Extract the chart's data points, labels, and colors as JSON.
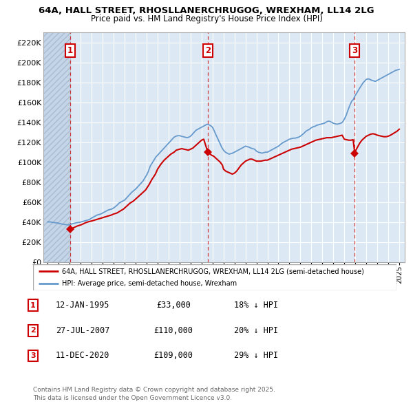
{
  "title_line1": "64A, HALL STREET, RHOSLLANERCHRUGOG, WREXHAM, LL14 2LG",
  "title_line2": "Price paid vs. HM Land Registry's House Price Index (HPI)",
  "ylim": [
    0,
    230000
  ],
  "yticks": [
    0,
    20000,
    40000,
    60000,
    80000,
    100000,
    120000,
    140000,
    160000,
    180000,
    200000,
    220000
  ],
  "ytick_labels": [
    "£0",
    "£20K",
    "£40K",
    "£60K",
    "£80K",
    "£100K",
    "£120K",
    "£140K",
    "£160K",
    "£180K",
    "£200K",
    "£220K"
  ],
  "xlim_start": 1992.6,
  "xlim_end": 2025.5,
  "bg_color": "#dce9f5",
  "grid_color": "#ffffff",
  "sale_dates_num": [
    1995.04,
    2007.57,
    2020.95
  ],
  "sale_prices": [
    33000,
    110000,
    109000
  ],
  "sale_labels": [
    "1",
    "2",
    "3"
  ],
  "sale_date_str": [
    "12-JAN-1995",
    "27-JUL-2007",
    "11-DEC-2020"
  ],
  "sale_price_str": [
    "£33,000",
    "£110,000",
    "£109,000"
  ],
  "sale_hpi_pct": [
    "18% ↓ HPI",
    "20% ↓ HPI",
    "29% ↓ HPI"
  ],
  "legend_line1": "64A, HALL STREET, RHOSLLANERCHRUGOG, WREXHAM, LL14 2LG (semi-detached house)",
  "legend_line2": "HPI: Average price, semi-detached house, Wrexham",
  "footer": "Contains HM Land Registry data © Crown copyright and database right 2025.\nThis data is licensed under the Open Government Licence v3.0.",
  "red_color": "#cc0000",
  "blue_color": "#6699cc",
  "hpi_x": [
    1993.0,
    1993.08,
    1993.17,
    1993.25,
    1993.33,
    1993.42,
    1993.5,
    1993.58,
    1993.67,
    1993.75,
    1993.83,
    1993.92,
    1994.0,
    1994.08,
    1994.17,
    1994.25,
    1994.33,
    1994.42,
    1994.5,
    1994.58,
    1994.67,
    1994.75,
    1994.83,
    1994.92,
    1995.0,
    1995.08,
    1995.17,
    1995.25,
    1995.33,
    1995.42,
    1995.5,
    1995.58,
    1995.67,
    1995.75,
    1995.83,
    1995.92,
    1996.0,
    1996.17,
    1996.33,
    1996.5,
    1996.67,
    1996.83,
    1997.0,
    1997.17,
    1997.33,
    1997.5,
    1997.67,
    1997.83,
    1998.0,
    1998.17,
    1998.33,
    1998.5,
    1998.67,
    1998.83,
    1999.0,
    1999.17,
    1999.33,
    1999.5,
    1999.67,
    1999.83,
    2000.0,
    2000.17,
    2000.33,
    2000.5,
    2000.67,
    2000.83,
    2001.0,
    2001.17,
    2001.33,
    2001.5,
    2001.67,
    2001.83,
    2002.0,
    2002.17,
    2002.33,
    2002.5,
    2002.67,
    2002.83,
    2003.0,
    2003.17,
    2003.33,
    2003.5,
    2003.67,
    2003.83,
    2004.0,
    2004.17,
    2004.33,
    2004.5,
    2004.67,
    2004.83,
    2005.0,
    2005.17,
    2005.33,
    2005.5,
    2005.67,
    2005.83,
    2006.0,
    2006.17,
    2006.33,
    2006.5,
    2006.67,
    2006.83,
    2007.0,
    2007.17,
    2007.33,
    2007.5,
    2007.67,
    2007.83,
    2008.0,
    2008.17,
    2008.33,
    2008.5,
    2008.67,
    2008.83,
    2009.0,
    2009.17,
    2009.33,
    2009.5,
    2009.67,
    2009.83,
    2010.0,
    2010.17,
    2010.33,
    2010.5,
    2010.67,
    2010.83,
    2011.0,
    2011.17,
    2011.33,
    2011.5,
    2011.67,
    2011.83,
    2012.0,
    2012.17,
    2012.33,
    2012.5,
    2012.67,
    2012.83,
    2013.0,
    2013.17,
    2013.33,
    2013.5,
    2013.67,
    2013.83,
    2014.0,
    2014.17,
    2014.33,
    2014.5,
    2014.67,
    2014.83,
    2015.0,
    2015.17,
    2015.33,
    2015.5,
    2015.67,
    2015.83,
    2016.0,
    2016.17,
    2016.33,
    2016.5,
    2016.67,
    2016.83,
    2017.0,
    2017.17,
    2017.33,
    2017.5,
    2017.67,
    2017.83,
    2018.0,
    2018.17,
    2018.33,
    2018.5,
    2018.67,
    2018.83,
    2019.0,
    2019.17,
    2019.33,
    2019.5,
    2019.67,
    2019.83,
    2020.0,
    2020.17,
    2020.33,
    2020.5,
    2020.67,
    2020.83,
    2021.0,
    2021.17,
    2021.33,
    2021.5,
    2021.67,
    2021.83,
    2022.0,
    2022.17,
    2022.33,
    2022.5,
    2022.67,
    2022.83,
    2023.0,
    2023.17,
    2023.33,
    2023.5,
    2023.67,
    2023.83,
    2024.0,
    2024.17,
    2024.33,
    2024.5,
    2024.67,
    2024.83,
    2025.0
  ],
  "hpi_y": [
    40000,
    40200,
    40100,
    40000,
    39800,
    39600,
    39500,
    39400,
    39300,
    39200,
    39100,
    39000,
    38500,
    38400,
    38200,
    38000,
    37800,
    37600,
    37500,
    37400,
    37300,
    37200,
    37100,
    37000,
    37200,
    37500,
    38000,
    38300,
    38500,
    38700,
    39000,
    39200,
    39400,
    39500,
    39600,
    39700,
    40000,
    40500,
    41000,
    41500,
    42000,
    42800,
    44000,
    45000,
    46000,
    47000,
    47500,
    48000,
    49000,
    50000,
    51000,
    52000,
    52500,
    53000,
    54000,
    55500,
    57000,
    59000,
    60000,
    61000,
    62000,
    64000,
    66000,
    68000,
    70000,
    71500,
    73000,
    75000,
    77000,
    79000,
    81000,
    84000,
    87000,
    91000,
    96000,
    99000,
    102000,
    105000,
    107000,
    109000,
    111000,
    113000,
    115000,
    117000,
    119000,
    121000,
    123000,
    125000,
    126000,
    126500,
    126500,
    126000,
    125500,
    125000,
    124500,
    125000,
    126000,
    128000,
    130000,
    132000,
    133000,
    134000,
    135000,
    136000,
    137000,
    138000,
    137500,
    136500,
    135000,
    131000,
    127000,
    123000,
    119000,
    115000,
    112000,
    110000,
    109000,
    108000,
    108500,
    109000,
    110000,
    111000,
    112000,
    113000,
    114000,
    115000,
    116000,
    115500,
    115000,
    114000,
    113500,
    113000,
    111000,
    110000,
    109500,
    109000,
    109500,
    110000,
    110000,
    111000,
    112000,
    113000,
    114000,
    115000,
    116000,
    117500,
    119000,
    120000,
    121000,
    122000,
    123000,
    123500,
    124000,
    124000,
    124500,
    125000,
    126000,
    127500,
    129000,
    131000,
    132000,
    133000,
    134500,
    135500,
    136000,
    137000,
    137500,
    138000,
    138500,
    139000,
    140000,
    141000,
    141000,
    140000,
    139000,
    138500,
    138000,
    138500,
    139000,
    140000,
    143000,
    147000,
    152000,
    157000,
    161000,
    163000,
    167000,
    170000,
    173000,
    176000,
    179000,
    181000,
    183000,
    183500,
    183000,
    182000,
    181500,
    181000,
    182000,
    183000,
    184000,
    185000,
    186000,
    187000,
    188000,
    189000,
    190000,
    191000,
    192000,
    192500,
    193000
  ],
  "red_x": [
    1995.04,
    1995.1,
    1995.2,
    1995.3,
    1995.5,
    1995.7,
    1996.0,
    1996.2,
    1996.5,
    1996.8,
    1997.0,
    1997.3,
    1997.6,
    1997.9,
    1998.2,
    1998.5,
    1998.8,
    1999.0,
    1999.3,
    1999.6,
    1999.9,
    2000.2,
    2000.5,
    2000.8,
    2001.0,
    2001.3,
    2001.6,
    2001.9,
    2002.2,
    2002.5,
    2002.8,
    2003.0,
    2003.3,
    2003.6,
    2003.9,
    2004.2,
    2004.5,
    2004.7,
    2005.0,
    2005.2,
    2005.4,
    2005.6,
    2005.8,
    2006.0,
    2006.2,
    2006.4,
    2006.6,
    2006.8,
    2007.0,
    2007.2,
    2007.57,
    2007.7,
    2007.9,
    2008.1,
    2008.3,
    2008.5,
    2008.7,
    2008.9,
    2009.0,
    2009.2,
    2009.4,
    2009.6,
    2009.8,
    2010.0,
    2010.2,
    2010.4,
    2010.6,
    2010.8,
    2011.0,
    2011.2,
    2011.4,
    2011.6,
    2011.8,
    2012.0,
    2012.2,
    2012.4,
    2012.6,
    2012.8,
    2013.0,
    2013.2,
    2013.4,
    2013.6,
    2013.8,
    2014.0,
    2014.2,
    2014.4,
    2014.6,
    2014.8,
    2015.0,
    2015.2,
    2015.4,
    2015.6,
    2015.8,
    2016.0,
    2016.2,
    2016.4,
    2016.6,
    2016.8,
    2017.0,
    2017.2,
    2017.4,
    2017.6,
    2017.8,
    2018.0,
    2018.2,
    2018.4,
    2018.6,
    2018.8,
    2019.0,
    2019.2,
    2019.4,
    2019.6,
    2019.8,
    2020.0,
    2020.2,
    2020.4,
    2020.6,
    2020.8,
    2020.95,
    2021.0,
    2021.2,
    2021.4,
    2021.6,
    2021.8,
    2022.0,
    2022.2,
    2022.4,
    2022.6,
    2022.8,
    2023.0,
    2023.2,
    2023.4,
    2023.6,
    2023.8,
    2024.0,
    2024.2,
    2024.5,
    2024.8,
    2025.0
  ],
  "red_y": [
    33000,
    33200,
    33500,
    34000,
    35000,
    36000,
    37000,
    38000,
    39500,
    40500,
    41000,
    42000,
    43000,
    44000,
    45000,
    46000,
    47000,
    48000,
    49000,
    51000,
    53000,
    56000,
    59000,
    61000,
    63000,
    66000,
    69000,
    72000,
    77000,
    83000,
    88000,
    93000,
    98000,
    102000,
    105000,
    108000,
    110000,
    112000,
    113000,
    113500,
    113000,
    112500,
    112000,
    113000,
    114000,
    116000,
    118000,
    120000,
    122000,
    123000,
    110000,
    109000,
    107000,
    106000,
    104000,
    102000,
    100000,
    97000,
    93000,
    91000,
    90000,
    89000,
    88000,
    89000,
    91000,
    94000,
    97000,
    99000,
    101000,
    102000,
    103000,
    103000,
    102000,
    101000,
    101000,
    101000,
    101500,
    102000,
    102000,
    103000,
    104000,
    105000,
    106000,
    107000,
    108000,
    109000,
    110000,
    111000,
    112000,
    113000,
    113500,
    114000,
    114500,
    115000,
    116000,
    117000,
    118000,
    119000,
    120000,
    121000,
    122000,
    122500,
    123000,
    123500,
    124000,
    124500,
    124500,
    124500,
    125000,
    125500,
    126000,
    126500,
    127000,
    123000,
    122500,
    122000,
    122000,
    122500,
    109000,
    111000,
    115000,
    119000,
    122000,
    124000,
    126000,
    127000,
    128000,
    128500,
    128000,
    127000,
    126500,
    126000,
    125500,
    125500,
    126000,
    127000,
    129000,
    131000,
    133000
  ]
}
